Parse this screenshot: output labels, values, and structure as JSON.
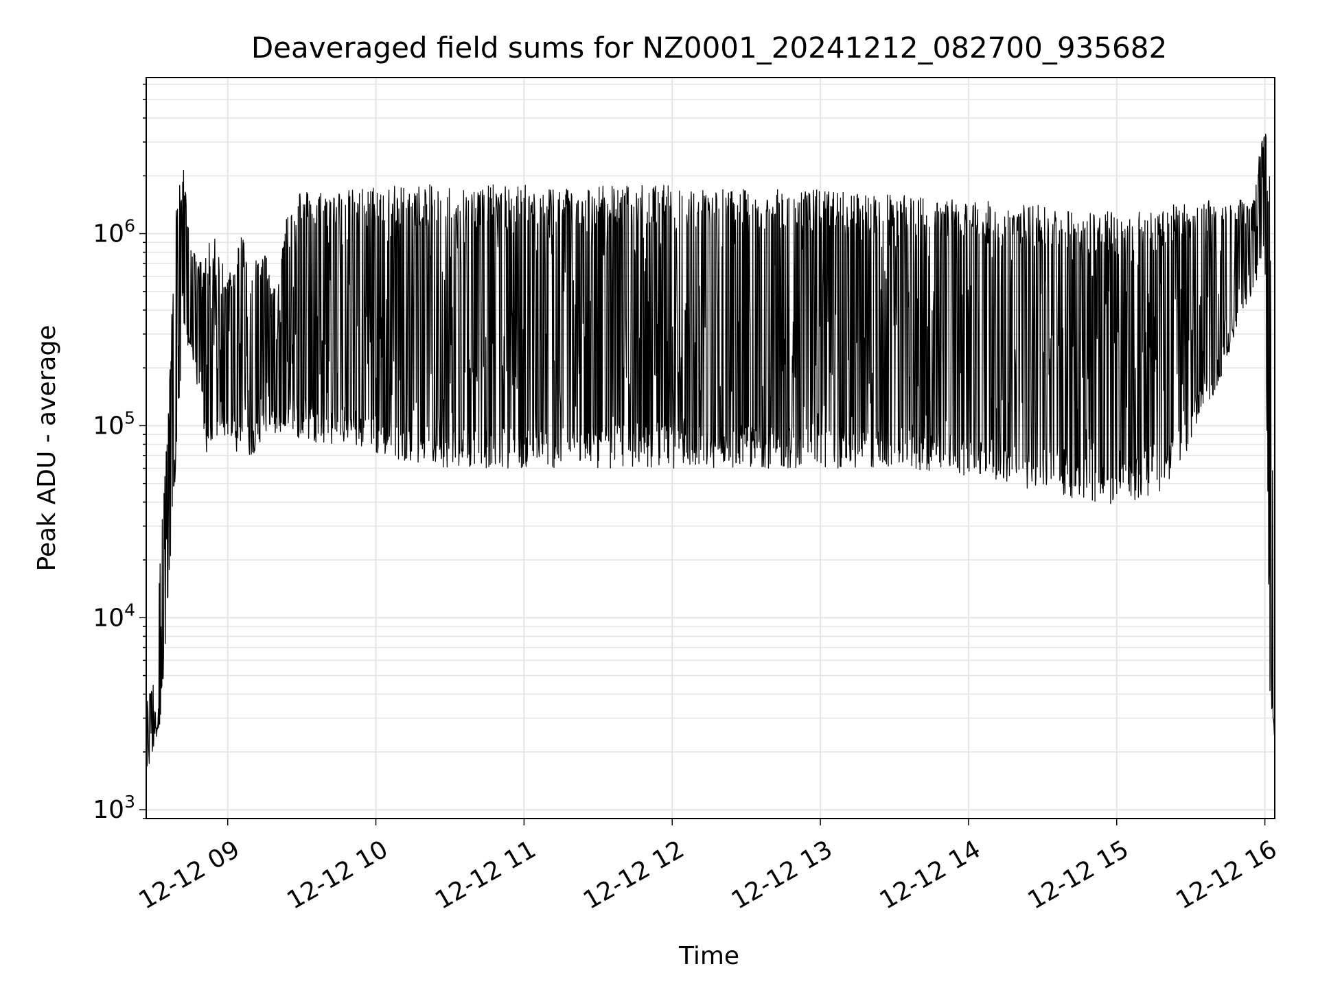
{
  "chart_data": {
    "type": "line",
    "title": "Deaveraged field sums for NZ0001_20241212_082700_935682",
    "xlabel": "Time",
    "ylabel": "Peak ADU - average",
    "yscale": "log",
    "ylim": [
      900,
      6500000
    ],
    "xlim": [
      "2024-12-12T08:27:00",
      "2024-12-12T16:04:00"
    ],
    "grid": true,
    "x_tick_labels": [
      "12-12 09",
      "12-12 10",
      "12-12 11",
      "12-12 12",
      "12-12 13",
      "12-12 14",
      "12-12 15",
      "12-12 16"
    ],
    "y_tick_labels": [
      {
        "base": "10",
        "exp": "3"
      },
      {
        "base": "10",
        "exp": "4"
      },
      {
        "base": "10",
        "exp": "5"
      },
      {
        "base": "10",
        "exp": "6"
      }
    ],
    "line_color": "#000000",
    "grid_color": "#e5e5e5",
    "series": [
      {
        "x": [
          "2024-12-12T08:27:00",
          "2024-12-12T08:30:00",
          "2024-12-12T08:33:00",
          "2024-12-12T08:36:00",
          "2024-12-12T08:39:00",
          "2024-12-12T08:42:00",
          "2024-12-12T08:45:00",
          "2024-12-12T08:48:00",
          "2024-12-12T08:51:00",
          "2024-12-12T08:54:00",
          "2024-12-12T08:57:00",
          "2024-12-12T09:00:00",
          "2024-12-12T09:05:00",
          "2024-12-12T09:10:00",
          "2024-12-12T09:15:00",
          "2024-12-12T09:20:00",
          "2024-12-12T09:25:00",
          "2024-12-12T09:30:00",
          "2024-12-12T09:40:00",
          "2024-12-12T09:50:00",
          "2024-12-12T10:00:00",
          "2024-12-12T10:30:00",
          "2024-12-12T11:00:00",
          "2024-12-12T11:30:00",
          "2024-12-12T12:00:00",
          "2024-12-12T12:30:00",
          "2024-12-12T13:00:00",
          "2024-12-12T13:30:00",
          "2024-12-12T14:00:00",
          "2024-12-12T14:30:00",
          "2024-12-12T15:00:00",
          "2024-12-12T15:20:00",
          "2024-12-12T15:40:00",
          "2024-12-12T15:55:00",
          "2024-12-12T16:00:00",
          "2024-12-12T16:02:00",
          "2024-12-12T16:04:00"
        ],
        "upper": [
          3500,
          5000,
          30000,
          120000,
          1500000,
          2300000,
          900000,
          700000,
          800000,
          1000000,
          800000,
          600000,
          1100000,
          700000,
          800000,
          500000,
          1900000,
          1700000,
          1700000,
          1700000,
          1800000,
          1800000,
          1800000,
          1800000,
          1800000,
          1700000,
          1700000,
          1600000,
          1500000,
          1400000,
          1300000,
          1400000,
          1500000,
          1500000,
          4000000,
          2000000,
          5000
        ],
        "lower": [
          1500,
          2000,
          3000,
          11000,
          60000,
          250000,
          250000,
          150000,
          70000,
          70000,
          100000,
          80000,
          70000,
          70000,
          90000,
          90000,
          85000,
          85000,
          80000,
          80000,
          70000,
          60000,
          60000,
          60000,
          60000,
          60000,
          60000,
          60000,
          55000,
          45000,
          38000,
          45000,
          150000,
          500000,
          700000,
          4000,
          1900
        ]
      }
    ]
  }
}
